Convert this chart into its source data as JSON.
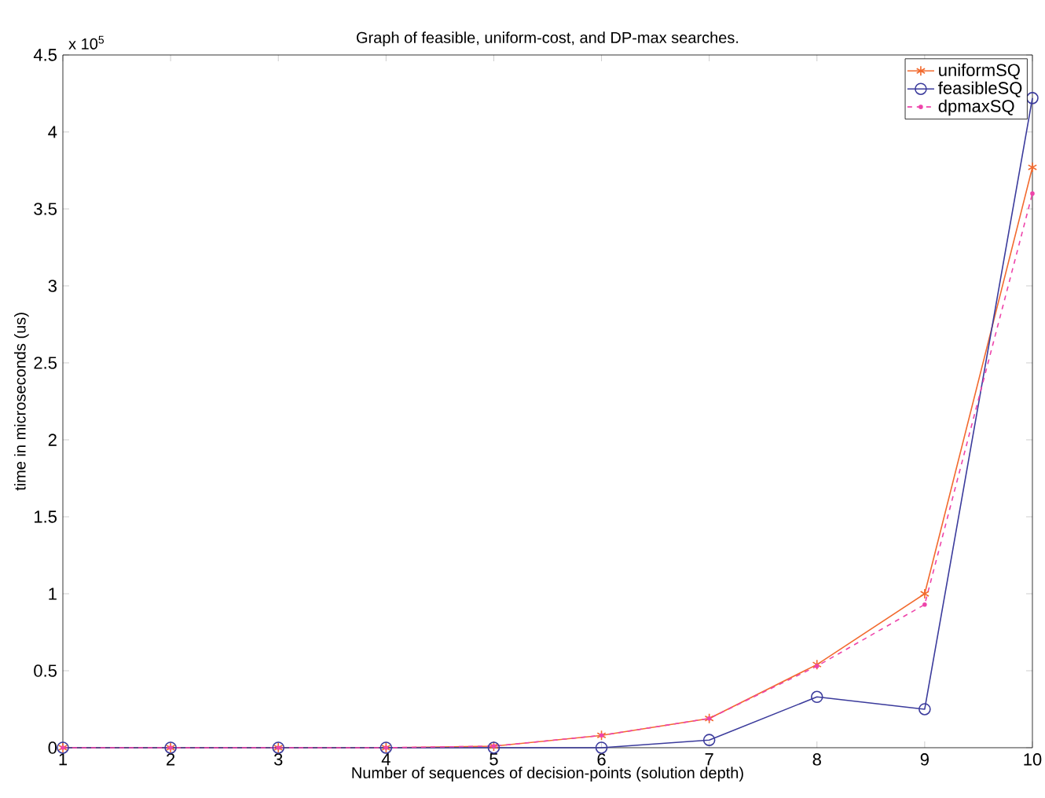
{
  "chart_data": {
    "type": "line",
    "title": "Graph of feasible, uniform-cost, and DP-max searches.",
    "xlabel": "Number of sequences of decision-points (solution depth)",
    "ylabel": "time in microseconds (us)",
    "annotations": [
      "x 10$^{5}$"
    ],
    "x": [
      1,
      2,
      3,
      4,
      5,
      6,
      7,
      8,
      9,
      10
    ],
    "series": [
      {
        "name": "uniformSQ",
        "color": "#f26a2e",
        "marker": "cross",
        "line_style": "solid",
        "values": [
          0,
          0,
          0,
          0,
          0.01,
          0.08,
          0.19,
          0.54,
          1.0,
          3.77
        ]
      },
      {
        "name": "feasibleSQ",
        "color": "#3b3b9c",
        "marker": "circle",
        "line_style": "solid",
        "values": [
          0,
          0,
          0,
          0,
          0,
          0,
          0.05,
          0.33,
          0.25,
          4.22
        ]
      },
      {
        "name": "dpmaxSQ",
        "color": "#ee44aa",
        "marker": "circle",
        "line_style": "dashed",
        "values": [
          0,
          0,
          0,
          0,
          0.01,
          0.08,
          0.19,
          0.53,
          0.93,
          3.6
        ]
      }
    ],
    "xlim": [
      1,
      10
    ],
    "ylim": [
      0,
      4.5
    ],
    "xticks": [
      1,
      2,
      3,
      4,
      5,
      6,
      7,
      8,
      9,
      10
    ],
    "yticks": [
      0,
      0.5,
      1,
      1.5,
      2,
      2.5,
      3,
      3.5,
      4,
      4.5
    ],
    "grid": false,
    "legend": "top right"
  }
}
